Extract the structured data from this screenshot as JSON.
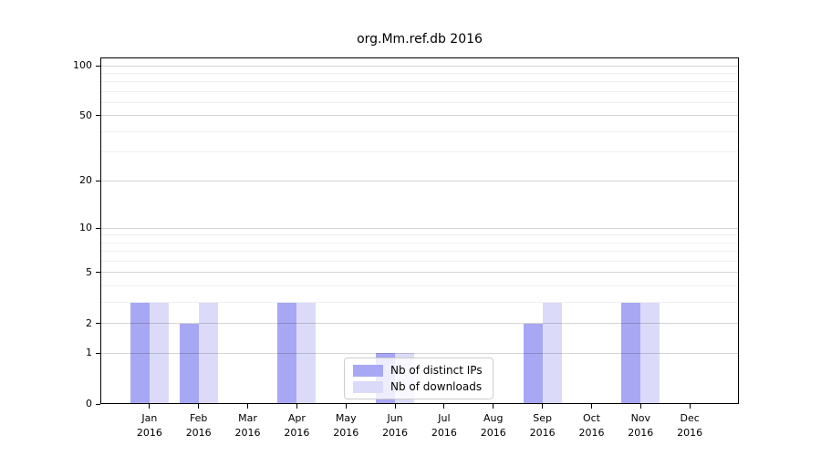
{
  "chart_data": {
    "type": "bar",
    "title": "org.Mm.ref.db 2016",
    "categories": [
      "Jan 2016",
      "Feb 2016",
      "Mar 2016",
      "Apr 2016",
      "May 2016",
      "Jun 2016",
      "Jul 2016",
      "Aug 2016",
      "Sep 2016",
      "Oct 2016",
      "Nov 2016",
      "Dec 2016"
    ],
    "series": [
      {
        "name": "Nb of distinct IPs",
        "color": "#a7a7f3",
        "values": [
          3,
          2,
          0,
          3,
          0,
          1,
          0,
          0,
          2,
          0,
          3,
          0
        ]
      },
      {
        "name": "Nb of downloads",
        "color": "#dbdbf9",
        "values": [
          3,
          3,
          0,
          3,
          0,
          1,
          0,
          0,
          3,
          0,
          3,
          0
        ]
      }
    ],
    "yscale": "log1p",
    "ylim": [
      0,
      112
    ],
    "y_ticks": [
      0,
      1,
      2,
      5,
      10,
      20,
      50,
      100
    ],
    "y_minor_ticks": [
      3,
      4,
      6,
      7,
      8,
      9,
      30,
      40,
      60,
      70,
      80,
      90
    ],
    "grid": "horizontal-on",
    "legend_position": "lower center"
  }
}
